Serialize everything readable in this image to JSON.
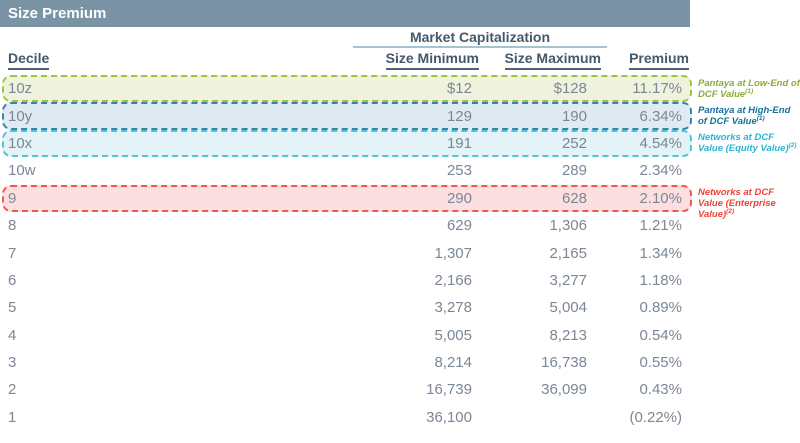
{
  "chart_data": {
    "type": "table",
    "title": "Size Premium",
    "group_header": "Market Capitalization",
    "columns": [
      "Decile",
      "Size Minimum",
      "Size Maximum",
      "Premium"
    ],
    "rows": [
      {
        "decile": "10z",
        "size_minimum": "$12",
        "size_maximum": "$128",
        "premium": "11.17%",
        "highlight": "green"
      },
      {
        "decile": "10y",
        "size_minimum": "129",
        "size_maximum": "190",
        "premium": "6.34%",
        "highlight": "teal"
      },
      {
        "decile": "10x",
        "size_minimum": "191",
        "size_maximum": "252",
        "premium": "4.54%",
        "highlight": "cyan"
      },
      {
        "decile": "10w",
        "size_minimum": "253",
        "size_maximum": "289",
        "premium": "2.34%",
        "highlight": null
      },
      {
        "decile": "9",
        "size_minimum": "290",
        "size_maximum": "628",
        "premium": "2.10%",
        "highlight": "red"
      },
      {
        "decile": "8",
        "size_minimum": "629",
        "size_maximum": "1,306",
        "premium": "1.21%",
        "highlight": null
      },
      {
        "decile": "7",
        "size_minimum": "1,307",
        "size_maximum": "2,165",
        "premium": "1.34%",
        "highlight": null
      },
      {
        "decile": "6",
        "size_minimum": "2,166",
        "size_maximum": "3,277",
        "premium": "1.18%",
        "highlight": null
      },
      {
        "decile": "5",
        "size_minimum": "3,278",
        "size_maximum": "5,004",
        "premium": "0.89%",
        "highlight": null
      },
      {
        "decile": "4",
        "size_minimum": "5,005",
        "size_maximum": "8,213",
        "premium": "0.54%",
        "highlight": null
      },
      {
        "decile": "3",
        "size_minimum": "8,214",
        "size_maximum": "16,738",
        "premium": "0.55%",
        "highlight": null
      },
      {
        "decile": "2",
        "size_minimum": "16,739",
        "size_maximum": "36,099",
        "premium": "0.43%",
        "highlight": null
      },
      {
        "decile": "1",
        "size_minimum": "36,100",
        "size_maximum": "",
        "premium": "(0.22%)",
        "highlight": null
      }
    ],
    "annotations": [
      {
        "row": "10z",
        "text": "Pantaya at Low-End of DCF Value",
        "superscript": "(1)",
        "color": "#8cab39"
      },
      {
        "row": "10y",
        "text": "Pantaya at High-End of DCF Value",
        "superscript": "(1)",
        "color": "#16719a"
      },
      {
        "row": "10x",
        "text": "Networks at DCF Value (Equity Value)",
        "superscript": "(2)",
        "color": "#29b6cd"
      },
      {
        "row": "9",
        "text": "Networks at DCF Value (Enterprise Value)",
        "superscript": "(2)",
        "color": "#ee4338"
      }
    ],
    "highlight_styles": {
      "green": {
        "background": "#eff3de",
        "border": "#a1c23e"
      },
      "teal": {
        "background": "#dfeaf2",
        "border": "#3585a9"
      },
      "cyan": {
        "background": "#e3f3f7",
        "border": "#4ec4d8"
      },
      "red": {
        "background": "#fbdfe1",
        "border": "#f0574e"
      }
    },
    "colors": {
      "title_bar_background": "#7b94a5",
      "title_text": "#ffffff",
      "header_text": "#44596b",
      "body_text": "#7b8795",
      "group_underline": "#a7c2d2",
      "header_underline": "#4e6374"
    },
    "layout_hints": {
      "legend_position": "none",
      "grid": "off"
    }
  }
}
